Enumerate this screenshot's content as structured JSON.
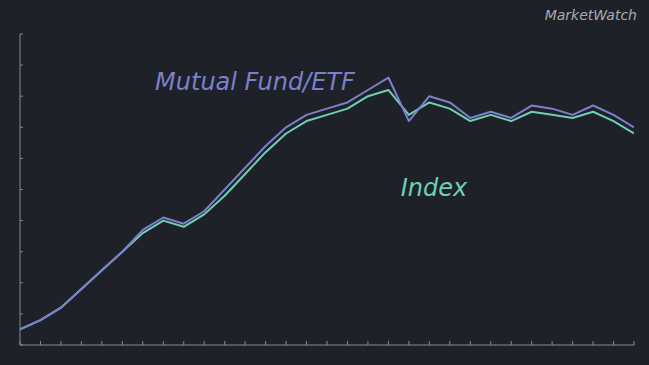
{
  "chart_data": {
    "type": "line",
    "annotations": [
      "MarketWatch"
    ],
    "x": [
      0,
      1,
      2,
      3,
      4,
      5,
      6,
      7,
      8,
      9,
      10,
      11,
      12,
      13,
      14,
      15,
      16,
      17,
      18,
      19,
      20,
      21,
      22,
      23,
      24,
      25,
      26,
      27,
      28,
      29,
      30
    ],
    "series": [
      {
        "name": "Index",
        "color": "#6ecfb5",
        "values": [
          0.05,
          0.08,
          0.12,
          0.18,
          0.24,
          0.3,
          0.36,
          0.4,
          0.38,
          0.42,
          0.48,
          0.55,
          0.62,
          0.68,
          0.72,
          0.74,
          0.76,
          0.8,
          0.82,
          0.74,
          0.78,
          0.76,
          0.72,
          0.74,
          0.72,
          0.75,
          0.74,
          0.73,
          0.75,
          0.72,
          0.68
        ]
      },
      {
        "name": "Mutual Fund/ETF",
        "color": "#7b7fce",
        "values": [
          0.05,
          0.08,
          0.12,
          0.18,
          0.24,
          0.3,
          0.37,
          0.41,
          0.39,
          0.43,
          0.5,
          0.57,
          0.64,
          0.7,
          0.74,
          0.76,
          0.78,
          0.82,
          0.86,
          0.72,
          0.8,
          0.78,
          0.73,
          0.75,
          0.73,
          0.77,
          0.76,
          0.74,
          0.77,
          0.74,
          0.7
        ]
      }
    ],
    "xlim": [
      0,
      30
    ],
    "ylim": [
      0,
      1
    ],
    "xticks": [
      0,
      1,
      2,
      3,
      4,
      5,
      6,
      7,
      8,
      9,
      10,
      11,
      12,
      13,
      14,
      15,
      16,
      17,
      18,
      19,
      20,
      21,
      22,
      23,
      24,
      25,
      26,
      27,
      28,
      29,
      30
    ],
    "yticks": [
      0,
      0.1,
      0.2,
      0.3,
      0.4,
      0.5,
      0.6,
      0.7,
      0.8,
      0.9,
      1
    ],
    "grid": false,
    "tick_labels": false
  }
}
